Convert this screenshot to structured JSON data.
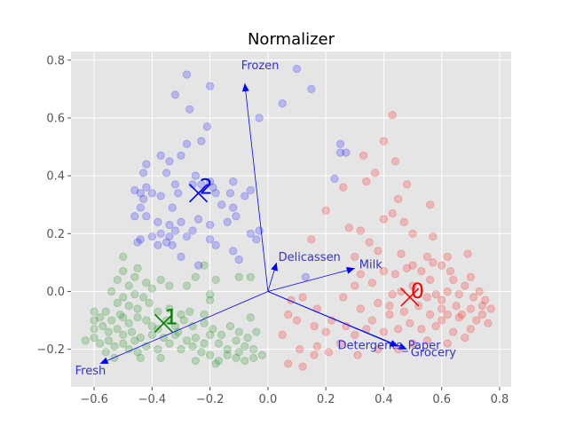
{
  "chart_data": {
    "type": "scatter",
    "title": "Normalizer",
    "xlim": [
      -0.68,
      0.84
    ],
    "ylim": [
      -0.33,
      0.83
    ],
    "x_ticks": [
      -0.6,
      -0.4,
      -0.2,
      0.0,
      0.2,
      0.4,
      0.6,
      0.8
    ],
    "x_tick_labels": [
      "−0.6",
      "−0.4",
      "−0.2",
      "0.0",
      "0.2",
      "0.4",
      "0.6",
      "0.8"
    ],
    "y_ticks": [
      -0.2,
      0.0,
      0.2,
      0.4,
      0.6,
      0.8
    ],
    "y_tick_labels": [
      "−0.2",
      "0.0",
      "0.2",
      "0.4",
      "0.6",
      "0.8"
    ],
    "grid": true,
    "colors": {
      "cluster_0": "#ff0000",
      "cluster_1": "#008000",
      "cluster_2": "#0000ff",
      "vectors": "#0000ff",
      "vector_text": "#3333cc"
    },
    "clusters": [
      {
        "label": "0",
        "color": "#ff0000",
        "center": [
          0.49,
          -0.02
        ],
        "points": [
          [
            0.43,
            0.61
          ],
          [
            0.4,
            0.52
          ],
          [
            0.44,
            0.45
          ],
          [
            0.33,
            0.47
          ],
          [
            0.37,
            0.41
          ],
          [
            0.34,
            0.38
          ],
          [
            0.26,
            0.36
          ],
          [
            0.48,
            0.37
          ],
          [
            0.45,
            0.32
          ],
          [
            0.43,
            0.27
          ],
          [
            0.47,
            0.24
          ],
          [
            0.56,
            0.3
          ],
          [
            0.2,
            0.28
          ],
          [
            0.4,
            0.25
          ],
          [
            0.5,
            0.2
          ],
          [
            0.57,
            0.19
          ],
          [
            0.32,
            0.21
          ],
          [
            0.28,
            0.22
          ],
          [
            0.15,
            0.18
          ],
          [
            0.35,
            0.17
          ],
          [
            0.38,
            0.14
          ],
          [
            0.46,
            0.13
          ],
          [
            0.55,
            0.12
          ],
          [
            0.62,
            0.12
          ],
          [
            0.69,
            0.13
          ],
          [
            0.6,
            0.09
          ],
          [
            0.53,
            0.07
          ],
          [
            0.4,
            0.07
          ],
          [
            0.3,
            0.12
          ],
          [
            0.32,
            0.06
          ],
          [
            0.44,
            0.06
          ],
          [
            0.5,
            0.09
          ],
          [
            0.56,
            0.04
          ],
          [
            0.64,
            0.04
          ],
          [
            0.7,
            0.05
          ],
          [
            0.73,
            0.0
          ],
          [
            0.68,
            0.02
          ],
          [
            0.62,
            0.0
          ],
          [
            0.58,
            -0.01
          ],
          [
            0.5,
            0.02
          ],
          [
            0.46,
            0.0
          ],
          [
            0.43,
            -0.01
          ],
          [
            0.36,
            0.03
          ],
          [
            0.3,
            0.02
          ],
          [
            0.26,
            -0.02
          ],
          [
            0.38,
            -0.04
          ],
          [
            0.42,
            -0.05
          ],
          [
            0.55,
            -0.02
          ],
          [
            0.6,
            -0.03
          ],
          [
            0.66,
            -0.01
          ],
          [
            0.71,
            -0.02
          ],
          [
            0.75,
            -0.03
          ],
          [
            0.77,
            -0.06
          ],
          [
            0.74,
            -0.08
          ],
          [
            0.7,
            -0.06
          ],
          [
            0.65,
            -0.05
          ],
          [
            0.6,
            -0.06
          ],
          [
            0.56,
            -0.08
          ],
          [
            0.52,
            -0.05
          ],
          [
            0.47,
            -0.07
          ],
          [
            0.42,
            -0.08
          ],
          [
            0.36,
            -0.1
          ],
          [
            0.32,
            -0.06
          ],
          [
            0.6,
            -0.1
          ],
          [
            0.66,
            -0.09
          ],
          [
            0.72,
            -0.1
          ],
          [
            0.76,
            -0.11
          ],
          [
            0.7,
            -0.13
          ],
          [
            0.64,
            -0.14
          ],
          [
            0.58,
            -0.12
          ],
          [
            0.53,
            -0.13
          ],
          [
            0.49,
            -0.11
          ],
          [
            0.45,
            -0.13
          ],
          [
            0.4,
            -0.14
          ],
          [
            0.34,
            -0.13
          ],
          [
            0.3,
            -0.15
          ],
          [
            0.25,
            -0.18
          ],
          [
            0.2,
            -0.14
          ],
          [
            0.16,
            -0.12
          ],
          [
            0.1,
            -0.1
          ],
          [
            0.07,
            -0.08
          ],
          [
            0.08,
            -0.03
          ],
          [
            0.12,
            -0.02
          ],
          [
            0.17,
            -0.06
          ],
          [
            0.22,
            -0.1
          ],
          [
            0.27,
            -0.12
          ],
          [
            0.55,
            -0.17
          ],
          [
            0.62,
            -0.18
          ],
          [
            0.68,
            -0.16
          ],
          [
            0.5,
            -0.18
          ],
          [
            0.45,
            -0.2
          ],
          [
            0.38,
            -0.2
          ],
          [
            0.31,
            -0.22
          ],
          [
            0.21,
            -0.21
          ],
          [
            0.16,
            -0.22
          ],
          [
            0.11,
            -0.2
          ],
          [
            0.07,
            -0.25
          ],
          [
            0.12,
            -0.26
          ],
          [
            0.17,
            -0.19
          ],
          [
            0.05,
            -0.15
          ],
          [
            0.74,
            -0.05
          ],
          [
            0.67,
            -0.08
          ],
          [
            0.62,
            -0.08
          ],
          [
            0.63,
            0.07
          ],
          [
            0.57,
            0.1
          ],
          [
            0.48,
            0.08
          ]
        ]
      },
      {
        "label": "1",
        "color": "#008000",
        "center": [
          -0.36,
          -0.11
        ],
        "points": [
          [
            -0.5,
            0.12
          ],
          [
            -0.5,
            0.07
          ],
          [
            -0.45,
            0.08
          ],
          [
            -0.52,
            0.04
          ],
          [
            -0.48,
            0.02
          ],
          [
            -0.46,
            0.05
          ],
          [
            -0.42,
            0.03
          ],
          [
            -0.54,
            0.0
          ],
          [
            -0.5,
            -0.02
          ],
          [
            -0.46,
            -0.01
          ],
          [
            -0.43,
            -0.02
          ],
          [
            -0.4,
            0.01
          ],
          [
            -0.37,
            0.04
          ],
          [
            -0.34,
            0.02
          ],
          [
            -0.28,
            0.02
          ],
          [
            -0.22,
            0.09
          ],
          [
            -0.25,
            0.05
          ],
          [
            -0.18,
            0.04
          ],
          [
            -0.2,
            -0.01
          ],
          [
            -0.2,
            -0.03
          ],
          [
            -0.1,
            0.05
          ],
          [
            -0.06,
            0.05
          ],
          [
            -0.52,
            -0.04
          ],
          [
            -0.48,
            -0.05
          ],
          [
            -0.45,
            -0.06
          ],
          [
            -0.41,
            -0.04
          ],
          [
            -0.38,
            -0.07
          ],
          [
            -0.34,
            -0.06
          ],
          [
            -0.3,
            -0.08
          ],
          [
            -0.27,
            -0.07
          ],
          [
            -0.22,
            -0.08
          ],
          [
            -0.6,
            -0.07
          ],
          [
            -0.58,
            -0.09
          ],
          [
            -0.56,
            -0.07
          ],
          [
            -0.54,
            -0.1
          ],
          [
            -0.51,
            -0.08
          ],
          [
            -0.48,
            -0.11
          ],
          [
            -0.45,
            -0.09
          ],
          [
            -0.42,
            -0.1
          ],
          [
            -0.4,
            -0.12
          ],
          [
            -0.38,
            -0.13
          ],
          [
            -0.35,
            -0.1
          ],
          [
            -0.32,
            -0.12
          ],
          [
            -0.29,
            -0.1
          ],
          [
            -0.26,
            -0.12
          ],
          [
            -0.22,
            -0.11
          ],
          [
            -0.19,
            -0.13
          ],
          [
            -0.16,
            -0.15
          ],
          [
            -0.13,
            -0.12
          ],
          [
            -0.1,
            -0.14
          ],
          [
            -0.07,
            -0.16
          ],
          [
            -0.04,
            -0.14
          ],
          [
            -0.6,
            -0.13
          ],
          [
            -0.57,
            -0.12
          ],
          [
            -0.55,
            -0.14
          ],
          [
            -0.52,
            -0.13
          ],
          [
            -0.5,
            -0.15
          ],
          [
            -0.47,
            -0.14
          ],
          [
            -0.44,
            -0.16
          ],
          [
            -0.4,
            -0.15
          ],
          [
            -0.36,
            -0.16
          ],
          [
            -0.32,
            -0.15
          ],
          [
            -0.28,
            -0.17
          ],
          [
            -0.25,
            -0.16
          ],
          [
            -0.22,
            -0.18
          ],
          [
            -0.2,
            -0.15
          ],
          [
            -0.17,
            -0.18
          ],
          [
            -0.14,
            -0.2
          ],
          [
            -0.11,
            -0.17
          ],
          [
            -0.08,
            -0.19
          ],
          [
            -0.05,
            -0.2
          ],
          [
            -0.02,
            -0.22
          ],
          [
            -0.63,
            -0.17
          ],
          [
            -0.6,
            -0.16
          ],
          [
            -0.58,
            -0.18
          ],
          [
            -0.55,
            -0.17
          ],
          [
            -0.53,
            -0.19
          ],
          [
            -0.5,
            -0.18
          ],
          [
            -0.48,
            -0.2
          ],
          [
            -0.45,
            -0.21
          ],
          [
            -0.42,
            -0.19
          ],
          [
            -0.38,
            -0.2
          ],
          [
            -0.34,
            -0.18
          ],
          [
            -0.3,
            -0.2
          ],
          [
            -0.26,
            -0.19
          ],
          [
            -0.23,
            -0.21
          ],
          [
            -0.2,
            -0.22
          ],
          [
            -0.17,
            -0.24
          ],
          [
            -0.14,
            -0.22
          ],
          [
            -0.11,
            -0.23
          ],
          [
            -0.08,
            -0.24
          ],
          [
            -0.05,
            -0.23
          ],
          [
            -0.6,
            -0.1
          ],
          [
            -0.56,
            -0.21
          ],
          [
            -0.53,
            -0.23
          ],
          [
            -0.44,
            -0.23
          ],
          [
            -0.37,
            -0.23
          ],
          [
            -0.25,
            -0.24
          ],
          [
            -0.18,
            -0.25
          ],
          [
            -0.1,
            -0.21
          ],
          [
            -0.31,
            -0.14
          ],
          [
            -0.06,
            -0.09
          ],
          [
            -0.5,
            -0.09
          ],
          [
            -0.46,
            -0.17
          ]
        ]
      },
      {
        "label": "2",
        "color": "#0000ff",
        "center": [
          -0.24,
          0.34
        ],
        "points": [
          [
            -0.28,
            0.75
          ],
          [
            -0.2,
            0.71
          ],
          [
            -0.32,
            0.68
          ],
          [
            -0.27,
            0.63
          ],
          [
            -0.21,
            0.57
          ],
          [
            -0.23,
            0.52
          ],
          [
            -0.28,
            0.51
          ],
          [
            -0.37,
            0.47
          ],
          [
            -0.42,
            0.44
          ],
          [
            -0.34,
            0.45
          ],
          [
            -0.43,
            0.41
          ],
          [
            -0.35,
            0.41
          ],
          [
            -0.3,
            0.47
          ],
          [
            -0.25,
            0.4
          ],
          [
            -0.2,
            0.38
          ],
          [
            -0.23,
            0.37
          ],
          [
            -0.19,
            0.36
          ],
          [
            -0.12,
            0.38
          ],
          [
            -0.13,
            0.34
          ],
          [
            -0.16,
            0.3
          ],
          [
            -0.18,
            0.34
          ],
          [
            -0.46,
            0.35
          ],
          [
            -0.44,
            0.34
          ],
          [
            -0.4,
            0.34
          ],
          [
            -0.37,
            0.33
          ],
          [
            -0.31,
            0.34
          ],
          [
            -0.33,
            0.29
          ],
          [
            -0.43,
            0.32
          ],
          [
            -0.44,
            0.29
          ],
          [
            -0.46,
            0.26
          ],
          [
            -0.42,
            0.26
          ],
          [
            -0.38,
            0.24
          ],
          [
            -0.34,
            0.23
          ],
          [
            -0.3,
            0.24
          ],
          [
            -0.24,
            0.25
          ],
          [
            -0.2,
            0.23
          ],
          [
            -0.12,
            0.29
          ],
          [
            -0.08,
            0.33
          ],
          [
            -0.06,
            0.35
          ],
          [
            -0.11,
            0.26
          ],
          [
            -0.14,
            0.24
          ],
          [
            -0.2,
            0.18
          ],
          [
            -0.26,
            0.21
          ],
          [
            -0.28,
            0.19
          ],
          [
            -0.32,
            0.21
          ],
          [
            -0.34,
            0.19
          ],
          [
            -0.37,
            0.2
          ],
          [
            -0.4,
            0.19
          ],
          [
            -0.44,
            0.18
          ],
          [
            -0.38,
            0.16
          ],
          [
            -0.33,
            0.16
          ],
          [
            -0.3,
            0.12
          ],
          [
            -0.24,
            0.09
          ],
          [
            -0.18,
            0.16
          ],
          [
            -0.12,
            0.14
          ],
          [
            -0.1,
            0.11
          ],
          [
            -0.06,
            0.2
          ],
          [
            -0.03,
            0.21
          ],
          [
            -0.04,
            0.18
          ],
          [
            -0.03,
            0.6
          ],
          [
            0.05,
            0.65
          ],
          [
            0.1,
            0.77
          ],
          [
            0.15,
            0.7
          ],
          [
            0.23,
            0.39
          ],
          [
            0.25,
            0.48
          ],
          [
            0.25,
            0.51
          ],
          [
            0.27,
            0.48
          ],
          [
            0.13,
            0.05
          ],
          [
            -0.42,
            0.36
          ],
          [
            -0.26,
            0.37
          ],
          [
            -0.32,
            0.37
          ],
          [
            -0.45,
            0.17
          ],
          [
            -0.35,
            0.17
          ]
        ]
      }
    ],
    "vectors": [
      {
        "name": "Frozen",
        "tip": [
          -0.08,
          0.72
        ]
      },
      {
        "name": "Delicassen",
        "tip": [
          0.03,
          0.1
        ]
      },
      {
        "name": "Milk",
        "tip": [
          0.3,
          0.08
        ]
      },
      {
        "name": "Detergents_Paper",
        "tip": [
          0.48,
          -0.2
        ]
      },
      {
        "name": "Grocery",
        "tip": [
          0.45,
          -0.19
        ]
      },
      {
        "name": "Fresh",
        "tip": [
          -0.58,
          -0.25
        ]
      }
    ]
  }
}
